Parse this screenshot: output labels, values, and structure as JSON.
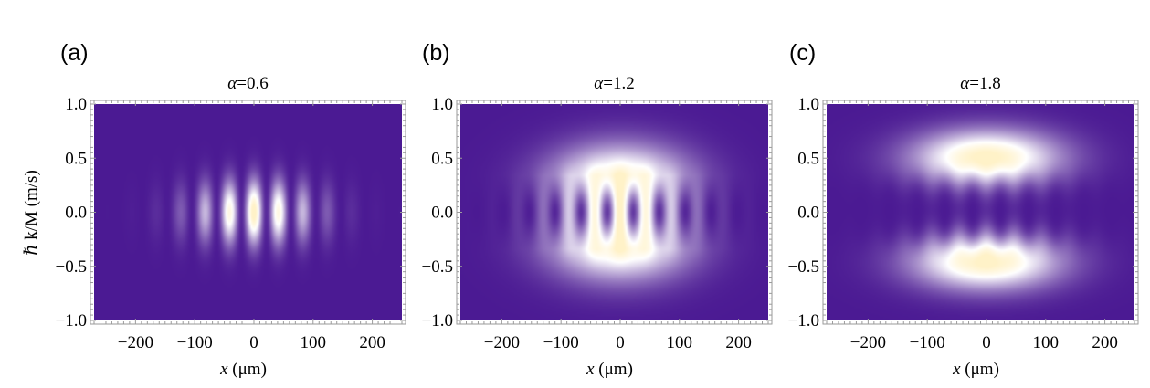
{
  "figure": {
    "colors": {
      "background": "#4b1a93",
      "mid": "#ffffff",
      "peak": "#fff2c8",
      "frame": "#9a9a9a"
    },
    "ylabel": "ℏ k/M (m/s)"
  },
  "chart_data": [
    {
      "type": "heatmap",
      "panel_label": "(a)",
      "title_symbol": "α",
      "title_value": "=0.6",
      "xlabel_var": "x",
      "xlabel_unit": " (μm)",
      "xlim": [
        -270,
        250
      ],
      "ylim": [
        -1.0,
        1.0
      ],
      "x_ticks": [
        -200,
        -100,
        0,
        100,
        200
      ],
      "x_tick_labels": [
        "−200",
        "−100",
        "0",
        "100",
        "200"
      ],
      "y_ticks": [
        1.0,
        0.5,
        0.0,
        -0.5,
        -1.0
      ],
      "y_tick_labels": [
        "1.0",
        "0.5",
        "0.0",
        "−0.5",
        "−1.0"
      ],
      "pattern": {
        "lobe_centers_y": [
          0.0
        ],
        "lobe_sigma_x": 70,
        "lobe_sigma_y": 0.2,
        "fringe_period_x": 42,
        "fringe_visibility": 0.95,
        "peak_intensity": 1.0
      }
    },
    {
      "type": "heatmap",
      "panel_label": "(b)",
      "title_symbol": "α",
      "title_value": "=1.2",
      "xlabel_var": "x",
      "xlabel_unit": " (μm)",
      "xlim": [
        -270,
        250
      ],
      "ylim": [
        -1.0,
        1.0
      ],
      "x_ticks": [
        -200,
        -100,
        0,
        100,
        200
      ],
      "x_tick_labels": [
        "−200",
        "−100",
        "0",
        "100",
        "200"
      ],
      "y_ticks": [
        1.0,
        0.5,
        0.0,
        -0.5,
        -1.0
      ],
      "y_tick_labels": [
        "1.0",
        "0.5",
        "0.0",
        "−0.5",
        "−1.0"
      ],
      "pattern": {
        "lobe_centers_y": [
          0.25,
          -0.25
        ],
        "lobe_sigma_x": 80,
        "lobe_sigma_y": 0.25,
        "fringe_period_x": 44,
        "fringe_visibility": 0.9,
        "peak_intensity": 1.0
      }
    },
    {
      "type": "heatmap",
      "panel_label": "(c)",
      "title_symbol": "α",
      "title_value": "=1.8",
      "xlabel_var": "x",
      "xlabel_unit": " (μm)",
      "xlim": [
        -270,
        250
      ],
      "ylim": [
        -1.0,
        1.0
      ],
      "x_ticks": [
        -200,
        -100,
        0,
        100,
        200
      ],
      "x_tick_labels": [
        "−200",
        "−100",
        "0",
        "100",
        "200"
      ],
      "y_ticks": [
        1.0,
        0.5,
        0.0,
        -0.5,
        -1.0
      ],
      "y_tick_labels": [
        "1.0",
        "0.5",
        "0.0",
        "−0.5",
        "−1.0"
      ],
      "pattern": {
        "lobe_centers_y": [
          0.5,
          -0.45
        ],
        "lobe_sigma_x": 85,
        "lobe_sigma_y": 0.18,
        "fringe_period_x": 47,
        "fringe_visibility": 0.95,
        "peak_intensity": 1.0
      }
    }
  ]
}
